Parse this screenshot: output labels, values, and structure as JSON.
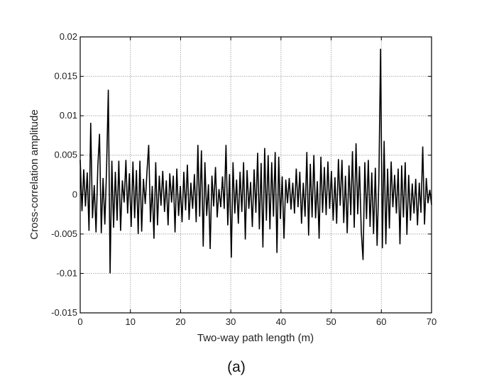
{
  "chart_data": {
    "type": "line",
    "title": "",
    "xlabel": "Two-way path length (m)",
    "ylabel": "Cross-correlation amplitude",
    "caption": "(a)",
    "xlim": [
      0,
      70
    ],
    "ylim": [
      -0.015,
      0.02
    ],
    "xticks": [
      0,
      10,
      20,
      30,
      40,
      50,
      60,
      70
    ],
    "yticks": [
      0.02,
      0.015,
      0.01,
      0.005,
      0,
      -0.005,
      -0.01,
      -0.015
    ],
    "xtick_labels": [
      "0",
      "10",
      "20",
      "30",
      "40",
      "50",
      "60",
      "70"
    ],
    "ytick_labels": [
      "0.02",
      "0.015",
      "0.01",
      "0.005",
      "0",
      "-0.005",
      "-0.01",
      "-0.015"
    ],
    "grid": true,
    "line_color": "#000000",
    "series": [
      {
        "name": "cross-correlation",
        "x_start": 0,
        "x_step": 0.35,
        "y": [
          0.0044,
          -0.0021,
          0.0032,
          -0.0015,
          0.0028,
          -0.0046,
          0.0091,
          -0.003,
          0.0012,
          -0.0048,
          0.0035,
          0.0077,
          -0.0049,
          0.0021,
          -0.0038,
          0.0031,
          0.0133,
          -0.01,
          0.0043,
          -0.0042,
          0.0029,
          -0.0033,
          0.0043,
          -0.0046,
          0.0018,
          -0.001,
          0.0044,
          -0.0024,
          0.0027,
          -0.0041,
          0.0042,
          -0.003,
          0.0031,
          -0.005,
          0.0043,
          -0.0047,
          0.002,
          -0.0012,
          0.0028,
          0.0063,
          -0.0035,
          0.0011,
          -0.0056,
          0.0041,
          -0.0039,
          0.0024,
          -0.0014,
          0.003,
          -0.0022,
          0.0018,
          -0.0039,
          0.0027,
          -0.001,
          0.0024,
          -0.0048,
          0.0033,
          -0.0027,
          0.0011,
          -0.0035,
          0.0029,
          -0.002,
          0.0038,
          -0.0032,
          0.0015,
          -0.0018,
          0.0026,
          -0.0035,
          0.0063,
          -0.0028,
          0.0056,
          -0.0066,
          0.0041,
          -0.0027,
          0.0013,
          -0.0069,
          0.0024,
          -0.0015,
          0.0035,
          -0.0029,
          0.0007,
          -0.0016,
          0.0023,
          -0.0018,
          0.0063,
          -0.0039,
          0.0026,
          -0.008,
          0.0041,
          -0.0024,
          0.0019,
          -0.0037,
          0.0029,
          -0.0022,
          0.0041,
          -0.0057,
          0.0031,
          -0.0018,
          0.0016,
          -0.0041,
          0.0032,
          -0.0023,
          0.0053,
          -0.0044,
          0.004,
          -0.0067,
          0.0059,
          -0.0033,
          0.005,
          -0.0044,
          0.0041,
          -0.0028,
          0.0054,
          -0.0074,
          0.0048,
          -0.0031,
          0.0023,
          -0.0056,
          0.0019,
          -0.0011,
          0.0021,
          -0.0019,
          0.0015,
          -0.0024,
          0.0033,
          -0.0016,
          0.0029,
          -0.0037,
          0.0015,
          -0.0028,
          0.0054,
          -0.0052,
          0.0039,
          -0.0029,
          0.005,
          -0.003,
          0.0017,
          -0.0056,
          0.0048,
          -0.0023,
          0.0035,
          -0.0026,
          0.0042,
          -0.0018,
          0.003,
          -0.0033,
          0.0022,
          -0.0037,
          0.0045,
          -0.0014,
          0.0044,
          -0.0036,
          0.0024,
          -0.0049,
          0.0037,
          -0.0026,
          0.0055,
          -0.0042,
          0.0065,
          -0.0025,
          0.0036,
          -0.0047,
          -0.0083,
          0.0041,
          -0.0031,
          0.0044,
          -0.0041,
          0.0028,
          -0.005,
          0.0034,
          -0.0065,
          0.0019,
          0.0185,
          -0.0068,
          0.0068,
          -0.0063,
          0.0033,
          -0.0043,
          0.0042,
          -0.0016,
          0.0025,
          -0.0024,
          0.0033,
          -0.0063,
          0.0037,
          -0.0029,
          0.0041,
          -0.0051,
          0.0025,
          -0.0033,
          0.0014,
          -0.0024,
          0.002,
          -0.0039,
          0.0015,
          -0.0023,
          0.0061,
          -0.0038,
          0.0021,
          -0.0011,
          0.0006,
          -0.0013
        ]
      }
    ]
  }
}
